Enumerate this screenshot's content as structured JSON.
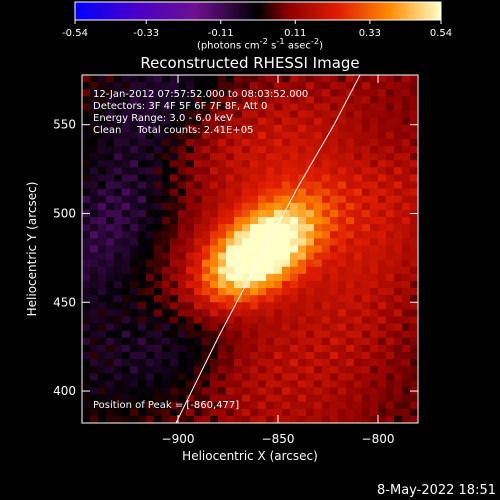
{
  "chart_data": {
    "type": "heatmap",
    "title": "Reconstructed RHESSI Image",
    "xlabel": "Heliocentric X (arcsec)",
    "ylabel": "Heliocentric Y (arcsec)",
    "xlim": [
      -948,
      -780
    ],
    "ylim": [
      382,
      578
    ],
    "x_ticks": [
      -900,
      -850,
      -800
    ],
    "y_ticks": [
      400,
      450,
      500,
      550
    ],
    "info_lines": [
      "12-Jan-2012 07:57:52.000 to 08:03:52.000",
      "Detectors: 3F 4F 5F 6F 7F 8F, Att 0",
      "Energy Range: 3.0 - 6.0 keV",
      "Clean     Total counts: 2.41E+05"
    ],
    "peak_label": "Position of Peak = [-860,477]",
    "peak": {
      "x": -860,
      "y": 477
    },
    "colorbar": {
      "ticks": [
        -0.54,
        -0.33,
        -0.11,
        0.11,
        0.33,
        0.54
      ],
      "tick_labels": [
        "-0.54",
        "-0.33",
        "-0.11",
        "0.11",
        "0.33",
        "0.54"
      ],
      "units": "(photons cm<sup>-2</sup> s<sup>-1</sup> asec<sup>-2</sup>)",
      "range": [
        -0.54,
        0.54
      ]
    },
    "limb_curve": [
      {
        "x": -901,
        "y": 382
      },
      {
        "x": -880,
        "y": 430
      },
      {
        "x": -858,
        "y": 477
      },
      {
        "x": -840,
        "y": 515
      },
      {
        "x": -822,
        "y": 550
      },
      {
        "x": -809,
        "y": 578
      }
    ]
  },
  "footer": {
    "date": "8-May-2022 18:51"
  }
}
